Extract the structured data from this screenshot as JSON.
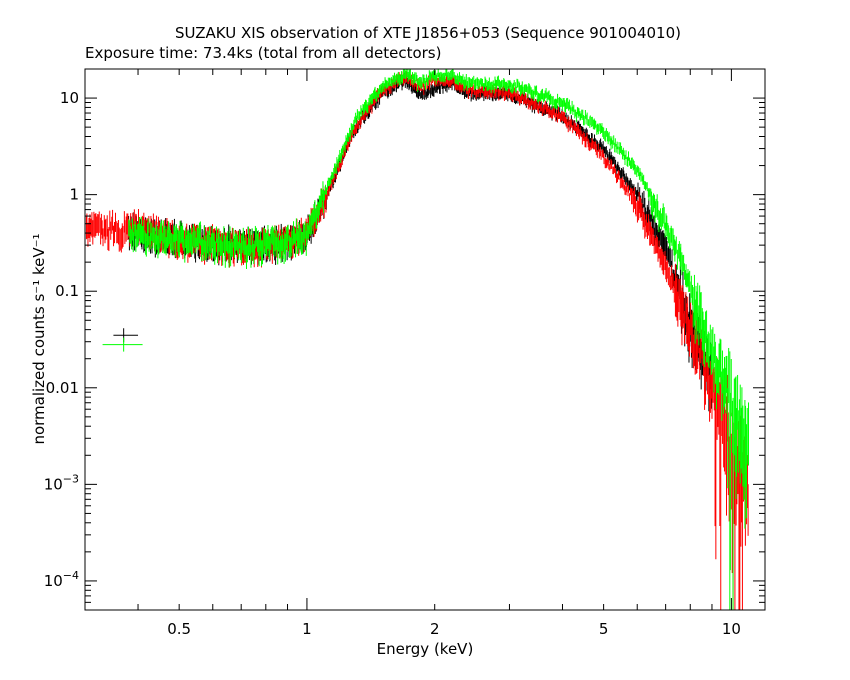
{
  "chart_data": {
    "type": "scatter",
    "title": "SUZAKU XIS observation of XTE J1856+053 (Sequence 901004010)",
    "subtitle": "Exposure time: 73.4ks (total from all detectors)",
    "xlabel": "Energy (keV)",
    "ylabel": "normalized counts s⁻¹ keV⁻¹",
    "x_scale": "log",
    "y_scale": "log",
    "xlim": [
      0.3,
      12
    ],
    "ylim": [
      5e-05,
      20
    ],
    "x_ticks": [
      {
        "value": 0.5,
        "label": "0.5"
      },
      {
        "value": 1,
        "label": "1"
      },
      {
        "value": 2,
        "label": "2"
      },
      {
        "value": 5,
        "label": "5"
      },
      {
        "value": 10,
        "label": "10"
      }
    ],
    "y_ticks": [
      {
        "value": 10,
        "label": "10"
      },
      {
        "value": 1,
        "label": "1"
      },
      {
        "value": 0.1,
        "label": "0.1"
      },
      {
        "value": 0.01,
        "label": "0.01"
      },
      {
        "value": 0.001,
        "base": "10",
        "exp": "−3"
      },
      {
        "value": 0.0001,
        "base": "10",
        "exp": "−4"
      }
    ],
    "series": [
      {
        "color": "#000000",
        "x": [
          0.38,
          0.5,
          0.7,
          0.9,
          1.0,
          1.1,
          1.3,
          1.5,
          1.7,
          1.85,
          2.0,
          2.2,
          2.4,
          3.0,
          4.0,
          5.0,
          6.0,
          7.0,
          8.0,
          9.0
        ],
        "y": [
          0.45,
          0.35,
          0.3,
          0.33,
          0.4,
          0.9,
          5,
          11,
          15.5,
          11,
          13,
          14,
          11.5,
          11,
          6.5,
          3,
          1,
          0.28,
          0.05,
          0.015
        ],
        "marker": {
          "x": 0.37,
          "y": 0.035,
          "xerr": [
            0.35,
            0.4
          ]
        }
      },
      {
        "color": "#ff0000",
        "x": [
          0.3,
          0.4,
          0.5,
          0.7,
          0.9,
          1.0,
          1.1,
          1.3,
          1.5,
          1.7,
          1.85,
          2.0,
          2.2,
          2.4,
          3.0,
          4.0,
          5.0,
          6.0,
          7.0,
          8.0,
          9.0,
          10.0,
          11.0
        ],
        "y": [
          0.45,
          0.45,
          0.35,
          0.3,
          0.33,
          0.4,
          0.9,
          5,
          12,
          17,
          13,
          15.5,
          15,
          12,
          11.5,
          6.3,
          2.5,
          0.8,
          0.18,
          0.04,
          0.012,
          0.003,
          0.001
        ]
      },
      {
        "color": "#00ff00",
        "x": [
          0.38,
          0.5,
          0.7,
          0.9,
          1.0,
          1.1,
          1.3,
          1.5,
          1.7,
          1.85,
          2.0,
          2.2,
          2.4,
          3.0,
          4.0,
          5.0,
          6.0,
          7.0,
          8.0,
          9.0,
          10.0,
          11.0
        ],
        "y": [
          0.4,
          0.35,
          0.3,
          0.33,
          0.42,
          1,
          6,
          13,
          18,
          14,
          17,
          17.5,
          14,
          14,
          9,
          4.5,
          1.8,
          0.5,
          0.12,
          0.025,
          0.008,
          0.003
        ],
        "marker": {
          "x": 0.37,
          "y": 0.028,
          "xerr": [
            0.33,
            0.41
          ]
        }
      }
    ]
  }
}
